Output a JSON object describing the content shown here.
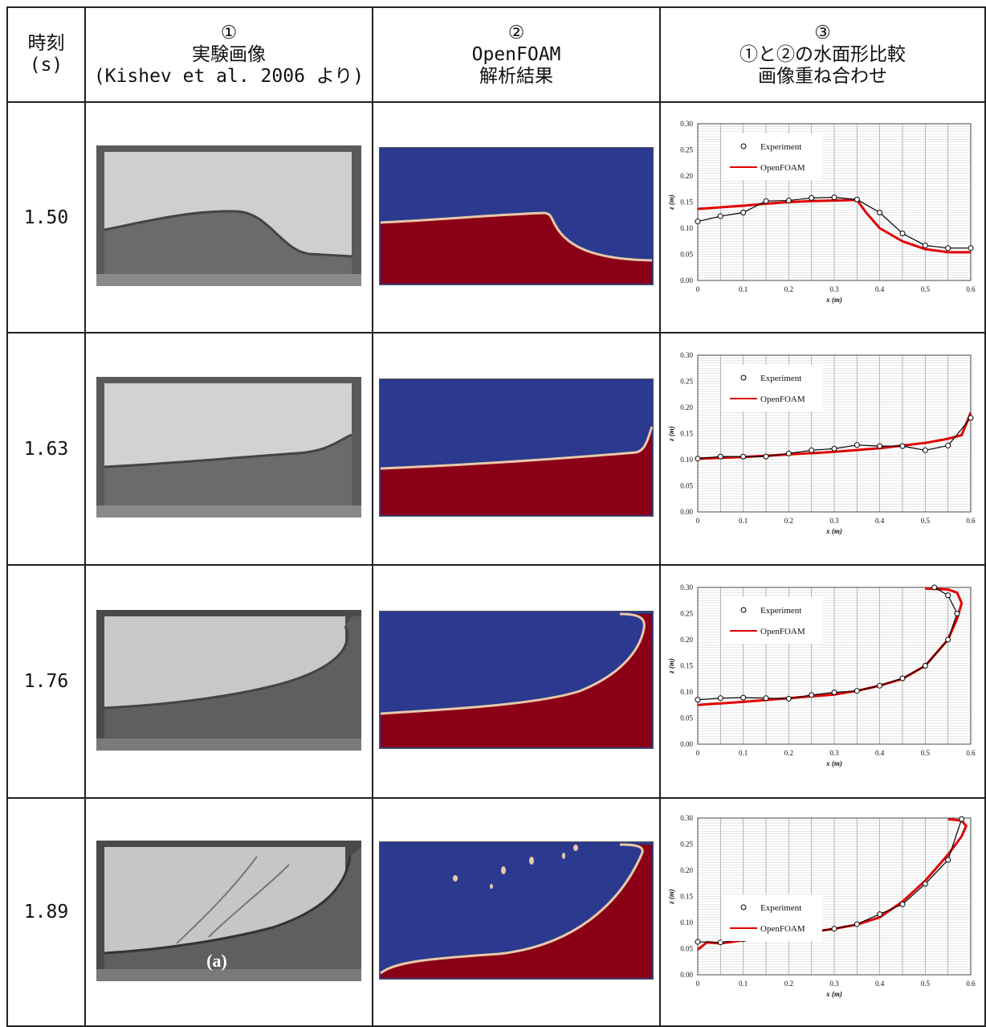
{
  "headers": {
    "time": [
      "時刻",
      "(s)"
    ],
    "col1": [
      "①",
      "実験画像",
      "(Kishev et al. 2006 より)"
    ],
    "col2": [
      "②",
      "OpenFOAM",
      "解析結果"
    ],
    "col3": [
      "③",
      "①と②の水面形比較",
      "画像重ね合わせ"
    ]
  },
  "rows": [
    {
      "time": "1.50"
    },
    {
      "time": "1.63"
    },
    {
      "time": "1.76"
    },
    {
      "time": "1.89",
      "photo_label": "(a)"
    }
  ],
  "colors": {
    "water": "#8B0017",
    "air": "#2B3A8F",
    "interface": "#E8C9A8",
    "openfoam": "#E00000",
    "experiment": "#000000"
  },
  "chart_common": {
    "xlabel": "x (m)",
    "ylabel": "z (m)",
    "xticks": [
      "0",
      "0.1",
      "0.2",
      "0.3",
      "0.4",
      "0.5",
      "0.6"
    ],
    "yticks": [
      "0.00",
      "0.05",
      "0.10",
      "0.15",
      "0.20",
      "0.25",
      "0.30"
    ],
    "legend": [
      "Experiment",
      "OpenFOAM"
    ]
  },
  "chart_data": [
    {
      "type": "line",
      "time": "1.50",
      "xlim": [
        0,
        0.6
      ],
      "ylim": [
        0,
        0.3
      ],
      "grid": true,
      "legend_position": "top-left",
      "series": [
        {
          "name": "Experiment",
          "x": [
            0,
            0.05,
            0.1,
            0.15,
            0.2,
            0.25,
            0.3,
            0.35,
            0.4,
            0.45,
            0.5,
            0.55,
            0.6
          ],
          "y": [
            0.113,
            0.123,
            0.13,
            0.152,
            0.153,
            0.158,
            0.159,
            0.155,
            0.13,
            0.09,
            0.067,
            0.062,
            0.062
          ]
        },
        {
          "name": "OpenFOAM",
          "x": [
            0,
            0.05,
            0.1,
            0.15,
            0.2,
            0.25,
            0.3,
            0.35,
            0.37,
            0.4,
            0.45,
            0.5,
            0.55,
            0.6
          ],
          "y": [
            0.137,
            0.14,
            0.143,
            0.147,
            0.15,
            0.152,
            0.153,
            0.154,
            0.13,
            0.1,
            0.075,
            0.06,
            0.054,
            0.054
          ]
        }
      ]
    },
    {
      "type": "line",
      "time": "1.63",
      "xlim": [
        0,
        0.6
      ],
      "ylim": [
        0,
        0.3
      ],
      "grid": true,
      "legend_position": "top-left",
      "series": [
        {
          "name": "Experiment",
          "x": [
            0,
            0.05,
            0.1,
            0.15,
            0.2,
            0.25,
            0.3,
            0.35,
            0.4,
            0.45,
            0.5,
            0.55,
            0.6
          ],
          "y": [
            0.102,
            0.106,
            0.106,
            0.106,
            0.112,
            0.118,
            0.121,
            0.128,
            0.126,
            0.126,
            0.118,
            0.127,
            0.18
          ]
        },
        {
          "name": "OpenFOAM",
          "x": [
            0,
            0.1,
            0.2,
            0.3,
            0.4,
            0.5,
            0.55,
            0.58,
            0.6
          ],
          "y": [
            0.102,
            0.105,
            0.11,
            0.115,
            0.122,
            0.132,
            0.14,
            0.147,
            0.19
          ]
        }
      ]
    },
    {
      "type": "line",
      "time": "1.76",
      "xlim": [
        0,
        0.6
      ],
      "ylim": [
        0,
        0.3
      ],
      "grid": true,
      "legend_position": "top-left",
      "series": [
        {
          "name": "Experiment",
          "x": [
            0,
            0.05,
            0.1,
            0.15,
            0.2,
            0.25,
            0.3,
            0.35,
            0.4,
            0.45,
            0.5,
            0.55,
            0.57,
            0.55,
            0.52
          ],
          "y": [
            0.085,
            0.088,
            0.089,
            0.088,
            0.087,
            0.094,
            0.099,
            0.102,
            0.112,
            0.126,
            0.15,
            0.2,
            0.25,
            0.285,
            0.3
          ]
        },
        {
          "name": "OpenFOAM",
          "x": [
            0,
            0.1,
            0.2,
            0.3,
            0.35,
            0.4,
            0.45,
            0.5,
            0.55,
            0.57,
            0.58,
            0.57,
            0.55,
            0.5
          ],
          "y": [
            0.075,
            0.081,
            0.088,
            0.095,
            0.102,
            0.112,
            0.125,
            0.15,
            0.2,
            0.24,
            0.27,
            0.29,
            0.296,
            0.298
          ]
        }
      ]
    },
    {
      "type": "line",
      "time": "1.89",
      "xlim": [
        0,
        0.6
      ],
      "ylim": [
        0,
        0.3
      ],
      "grid": true,
      "legend_position": "center-left",
      "series": [
        {
          "name": "Experiment",
          "x": [
            0,
            0.05,
            0.1,
            0.15,
            0.2,
            0.25,
            0.3,
            0.35,
            0.4,
            0.45,
            0.5,
            0.55,
            0.58
          ],
          "y": [
            0.063,
            0.062,
            0.068,
            0.075,
            0.078,
            0.082,
            0.088,
            0.097,
            0.116,
            0.135,
            0.174,
            0.22,
            0.298
          ]
        },
        {
          "name": "OpenFOAM",
          "x": [
            0,
            0.02,
            0.05,
            0.1,
            0.2,
            0.3,
            0.35,
            0.4,
            0.45,
            0.5,
            0.55,
            0.58,
            0.59,
            0.58,
            0.55
          ],
          "y": [
            0.048,
            0.062,
            0.06,
            0.066,
            0.076,
            0.088,
            0.096,
            0.11,
            0.14,
            0.18,
            0.23,
            0.265,
            0.285,
            0.295,
            0.298
          ]
        }
      ]
    }
  ]
}
